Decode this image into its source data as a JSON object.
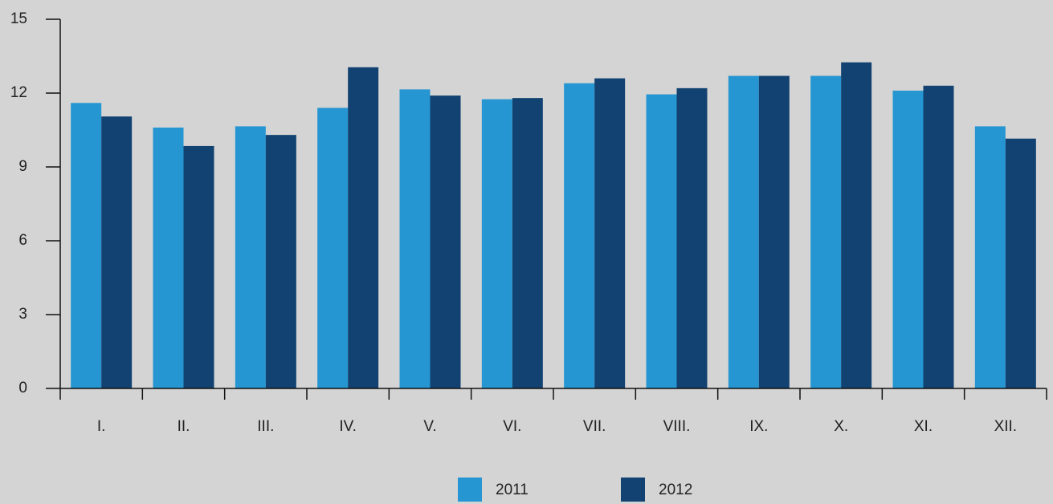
{
  "chart_data": {
    "type": "bar",
    "categories": [
      "I.",
      "II.",
      "III.",
      "IV.",
      "V.",
      "VI.",
      "VII.",
      "VIII.",
      "IX.",
      "X.",
      "XI.",
      "XII."
    ],
    "series": [
      {
        "name": "2011",
        "color": "#2596d1",
        "values": [
          11.6,
          10.6,
          10.65,
          11.4,
          12.15,
          11.75,
          12.4,
          11.95,
          12.7,
          12.7,
          12.1,
          10.65
        ]
      },
      {
        "name": "2012",
        "color": "#124271",
        "values": [
          11.05,
          9.85,
          10.3,
          13.05,
          11.9,
          11.8,
          12.6,
          12.2,
          12.7,
          13.25,
          12.3,
          10.15
        ]
      }
    ],
    "ylim": [
      0,
      15
    ],
    "yticks": [
      0,
      3,
      6,
      9,
      12,
      15
    ],
    "grid": false,
    "legend": "bottom"
  }
}
